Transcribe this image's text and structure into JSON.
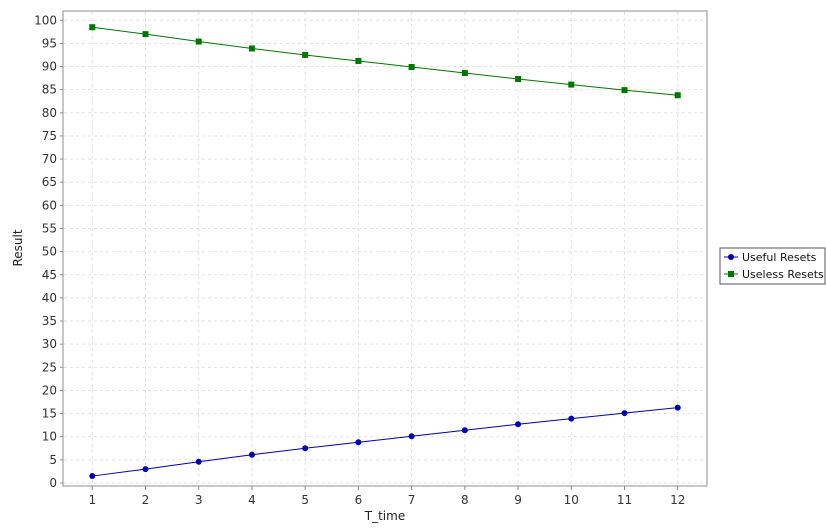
{
  "chart_data": {
    "type": "line",
    "title": "",
    "xlabel": "T_time",
    "ylabel": "Result",
    "x": [
      1,
      2,
      3,
      4,
      5,
      6,
      7,
      8,
      9,
      10,
      11,
      12
    ],
    "xlim": [
      0.45,
      12.55
    ],
    "ylim": [
      0,
      102
    ],
    "yticks": [
      0,
      5,
      10,
      15,
      20,
      25,
      30,
      35,
      40,
      45,
      50,
      55,
      60,
      65,
      70,
      75,
      80,
      85,
      90,
      95,
      100
    ],
    "grid": true,
    "legend_position": "right",
    "series": [
      {
        "name": "Useful Resets",
        "color": "#0000b4",
        "marker": "circle",
        "values": [
          1.5,
          3.0,
          4.6,
          6.1,
          7.5,
          8.8,
          10.1,
          11.4,
          12.7,
          13.9,
          15.1,
          16.3
        ]
      },
      {
        "name": "Useless Resets",
        "color": "#007800",
        "marker": "square",
        "values": [
          98.5,
          97.0,
          95.4,
          93.9,
          92.5,
          91.2,
          89.9,
          88.6,
          87.3,
          86.1,
          84.9,
          83.8
        ]
      }
    ]
  }
}
